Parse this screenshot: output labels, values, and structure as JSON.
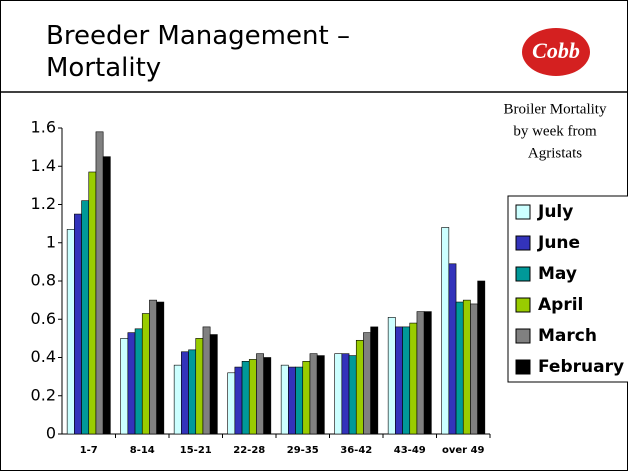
{
  "header": {
    "title": "Breeder Management – Mortality",
    "logo": "Cobb"
  },
  "chart_data": {
    "type": "bar",
    "annotation": "Broiler Mortality by week from Agristats",
    "categories": [
      "1-7",
      "8-14",
      "15-21",
      "22-28",
      "29-35",
      "36-42",
      "43-49",
      "over 49"
    ],
    "series": [
      {
        "name": "July",
        "color": "#ccffff",
        "values": [
          1.07,
          0.5,
          0.36,
          0.32,
          0.36,
          0.42,
          0.61,
          1.08
        ]
      },
      {
        "name": "June",
        "color": "#3333bb",
        "values": [
          1.15,
          0.53,
          0.43,
          0.35,
          0.35,
          0.42,
          0.56,
          0.89
        ]
      },
      {
        "name": "May",
        "color": "#009999",
        "values": [
          1.22,
          0.55,
          0.44,
          0.38,
          0.35,
          0.41,
          0.56,
          0.69
        ]
      },
      {
        "name": "April",
        "color": "#99cc00",
        "values": [
          1.37,
          0.63,
          0.5,
          0.39,
          0.38,
          0.49,
          0.58,
          0.7
        ]
      },
      {
        "name": "March",
        "color": "#808080",
        "values": [
          1.58,
          0.7,
          0.56,
          0.42,
          0.42,
          0.53,
          0.64,
          0.68
        ]
      },
      {
        "name": "February",
        "color": "#000000",
        "values": [
          1.45,
          0.69,
          0.52,
          0.4,
          0.41,
          0.56,
          0.64,
          0.8
        ]
      }
    ],
    "ylim": [
      0,
      1.6
    ],
    "yticks": [
      0,
      0.2,
      0.4,
      0.6,
      0.8,
      1,
      1.2,
      1.4,
      1.6
    ]
  }
}
